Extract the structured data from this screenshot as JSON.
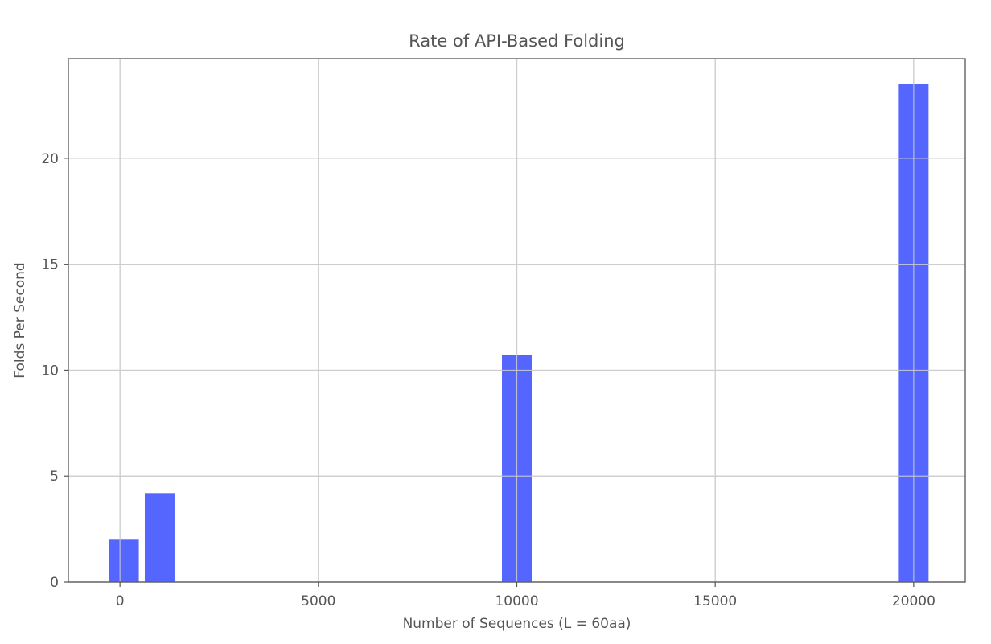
{
  "chart_data": {
    "type": "bar",
    "title": "Rate of API-Based Folding",
    "xlabel": "Number of Sequences (L = 60aa)",
    "ylabel": "Folds Per Second",
    "x": [
      100,
      1000,
      10000,
      20000
    ],
    "values": [
      2.0,
      4.2,
      10.7,
      23.5
    ],
    "bar_width": 750,
    "xlim": [
      -1300,
      21300
    ],
    "ylim": [
      0,
      24.7
    ],
    "xticks": [
      0,
      5000,
      10000,
      15000,
      20000
    ],
    "xtick_labels": [
      "0",
      "5000",
      "10000",
      "15000",
      "20000"
    ],
    "yticks": [
      0,
      5,
      10,
      15,
      20
    ],
    "ytick_labels": [
      "0",
      "5",
      "10",
      "15",
      "20"
    ],
    "grid": true,
    "bar_color": "#5566ff",
    "grid_color": "#cccccc",
    "frame_color": "#555555"
  }
}
